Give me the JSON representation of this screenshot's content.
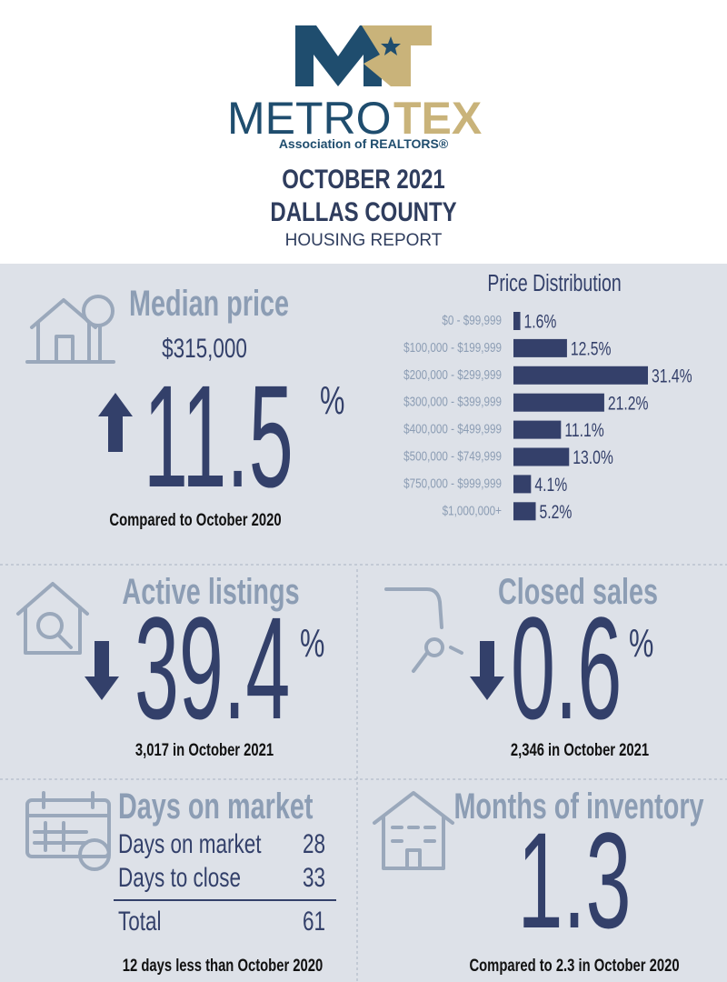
{
  "header": {
    "logo_left": "METRO",
    "logo_right": "TEX",
    "logo_sub": "Association of REALTORS®",
    "line1": "OCTOBER 2021",
    "line2": "DALLAS COUNTY",
    "line3": "HOUSING REPORT"
  },
  "median_price": {
    "title": "Median price",
    "price": "$315,000",
    "change": "11.5",
    "unit": "%",
    "note": "Compared to October 2020"
  },
  "chart_data": {
    "type": "bar",
    "orientation": "horizontal",
    "title": "Price Distribution",
    "categories": [
      "$0 - $99,999",
      "$100,000 - $199,999",
      "$200,000 - $299,999",
      "$300,000 - $399,999",
      "$400,000 - $499,999",
      "$500,000 - $749,999",
      "$750,000 - $999,999",
      "$1,000,000+"
    ],
    "values": [
      1.6,
      12.5,
      31.4,
      21.2,
      11.1,
      13.0,
      4.1,
      5.2
    ],
    "value_labels": [
      "1.6%",
      "12.5%",
      "31.4%",
      "21.2%",
      "11.1%",
      "13.0%",
      "4.1%",
      "5.2%"
    ],
    "color": "#34406a"
  },
  "active_listings": {
    "title": "Active listings",
    "change": "39.4",
    "unit": "%",
    "note": "3,017 in October 2021"
  },
  "closed_sales": {
    "title": "Closed sales",
    "change": "0.6",
    "unit": "%",
    "note": "2,346 in October 2021"
  },
  "days_on_market": {
    "title": "Days on market",
    "rows": [
      [
        "Days on market",
        "28"
      ],
      [
        "Days to close",
        "33"
      ],
      [
        "Total",
        "61"
      ]
    ],
    "note": "12 days less than October 2020"
  },
  "months_of_inventory": {
    "title": "Months of inventory",
    "value": "1.3",
    "note": "Compared to 2.3 in October 2020"
  }
}
